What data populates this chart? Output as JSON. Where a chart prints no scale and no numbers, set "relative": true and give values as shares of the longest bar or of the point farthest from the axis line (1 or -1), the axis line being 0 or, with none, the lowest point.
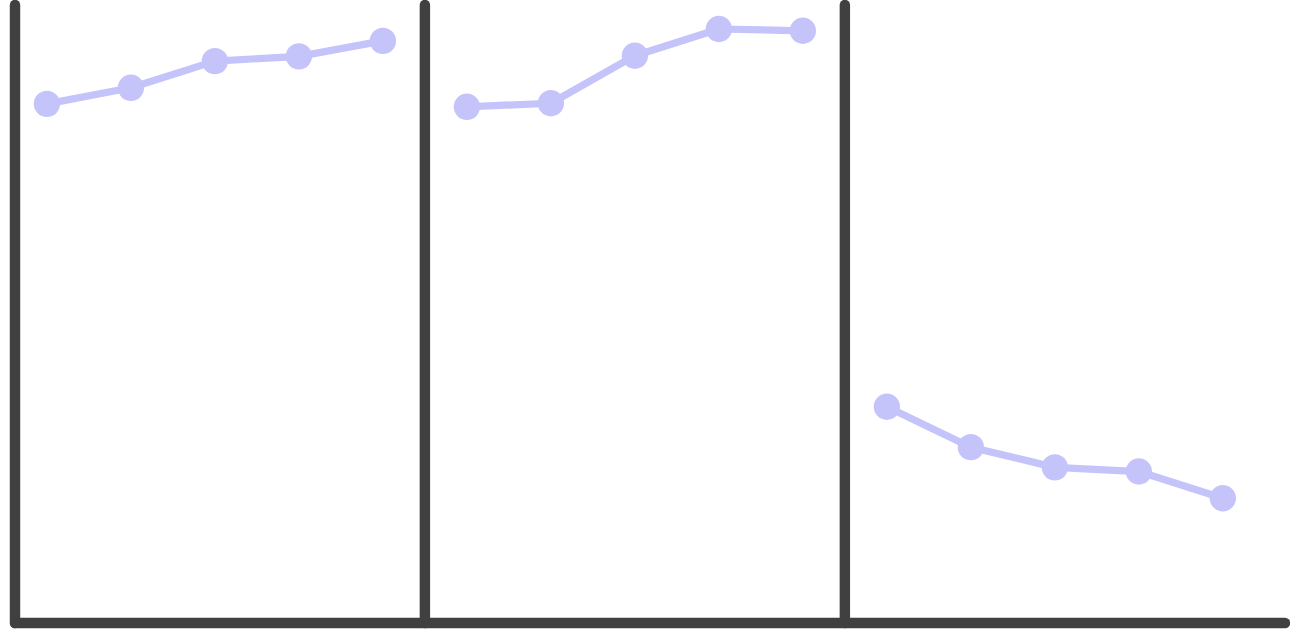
{
  "chart_data": {
    "type": "line",
    "relative": true,
    "marker": "circle",
    "categories": [
      null,
      null,
      null,
      null,
      null,
      null,
      null,
      null,
      null,
      null,
      null,
      null,
      null,
      null,
      null
    ],
    "series": [
      {
        "color": "#c4c4fb",
        "values": [
          0.874,
          0.901,
          0.946,
          0.954,
          0.98,
          null,
          null,
          null,
          null,
          null,
          null,
          null,
          null,
          null,
          null
        ]
      },
      {
        "color": "#c4c4fb",
        "values": [
          null,
          null,
          null,
          null,
          null,
          0.869,
          0.875,
          0.955,
          1,
          0.997,
          null,
          null,
          null,
          null,
          null
        ]
      },
      {
        "color": "#c4c4fb",
        "values": [
          null,
          null,
          null,
          null,
          null,
          null,
          null,
          null,
          null,
          null,
          0.364,
          0.296,
          0.262,
          0.255,
          0.21
        ]
      }
    ]
  }
}
